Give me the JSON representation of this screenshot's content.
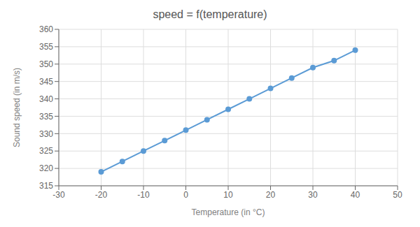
{
  "chart_data": {
    "type": "line",
    "title": "speed = f(temperature)",
    "xlabel": "Temperature (in °C)",
    "ylabel": "Sound speed (in m/s)",
    "x": [
      -20,
      -15,
      -10,
      -5,
      0,
      5,
      10,
      15,
      20,
      25,
      30,
      35,
      40
    ],
    "values": [
      319,
      322,
      325,
      328,
      331,
      334,
      337,
      340,
      343,
      346,
      349,
      351,
      354
    ],
    "color": "#5b9bd5",
    "marker": "circle",
    "xlim": [
      -30,
      50
    ],
    "ylim": [
      315,
      360
    ],
    "xticks": [
      -30,
      -20,
      -10,
      0,
      10,
      20,
      30,
      40,
      50
    ],
    "yticks": [
      315,
      320,
      325,
      330,
      335,
      340,
      345,
      350,
      355,
      360
    ],
    "grid": true
  }
}
